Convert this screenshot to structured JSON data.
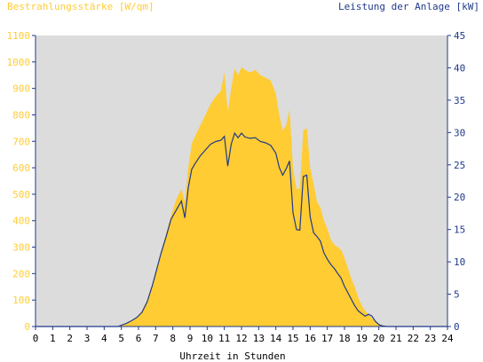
{
  "chart_data": {
    "type": "area",
    "title_left": "Bestrahlungsstärke [W/qm]",
    "title_right": "Leistung der Anlage [kW]",
    "xlabel": "Uhrzeit in Stunden",
    "xlim": [
      0,
      24
    ],
    "x_ticks": [
      "0",
      "1",
      "2",
      "3",
      "4",
      "5",
      "6",
      "7",
      "8",
      "9",
      "10",
      "11",
      "12",
      "13",
      "14",
      "15",
      "16",
      "17",
      "18",
      "19",
      "20",
      "21",
      "22",
      "23",
      "24"
    ],
    "y_left": {
      "lim": [
        0,
        1100
      ],
      "ticks": [
        "0",
        "100",
        "200",
        "300",
        "400",
        "500",
        "600",
        "700",
        "800",
        "900",
        "1000",
        "1100"
      ]
    },
    "y_right": {
      "lim": [
        0,
        45
      ],
      "ticks": [
        "0",
        "5",
        "10",
        "15",
        "20",
        "25",
        "30",
        "35",
        "40",
        "45"
      ]
    },
    "grid": false,
    "colors": {
      "irradiance": "#ffcc33",
      "power": "#1f3a8a",
      "plot_bg": "#dcdcdc",
      "axis": "#1f3a8a"
    },
    "series": [
      {
        "name": "Bestrahlungsstärke [W/qm]",
        "axis": "left",
        "kind": "area",
        "x": [
          0,
          4.8,
          5.0,
          5.3,
          5.6,
          5.9,
          6.2,
          6.5,
          6.8,
          7.0,
          7.3,
          7.6,
          7.9,
          8.2,
          8.5,
          8.7,
          8.9,
          9.1,
          9.3,
          9.6,
          9.9,
          10.2,
          10.5,
          10.8,
          11.0,
          11.2,
          11.4,
          11.6,
          11.8,
          12.0,
          12.2,
          12.5,
          12.8,
          13.1,
          13.4,
          13.7,
          14.0,
          14.2,
          14.4,
          14.6,
          14.8,
          15.0,
          15.2,
          15.4,
          15.6,
          15.8,
          16.0,
          16.2,
          16.4,
          16.6,
          16.8,
          17.0,
          17.2,
          17.4,
          17.6,
          17.8,
          18.0,
          18.2,
          18.4,
          18.6,
          18.8,
          19.0,
          19.2,
          19.4,
          19.6,
          19.8,
          20.0,
          20.2,
          20.5,
          24
        ],
        "values": [
          0,
          0,
          5,
          10,
          20,
          35,
          60,
          100,
          160,
          210,
          280,
          350,
          420,
          480,
          520,
          470,
          600,
          690,
          720,
          760,
          800,
          840,
          870,
          890,
          960,
          810,
          900,
          975,
          950,
          980,
          970,
          960,
          970,
          950,
          940,
          930,
          880,
          800,
          740,
          760,
          820,
          600,
          520,
          520,
          740,
          750,
          600,
          540,
          470,
          450,
          400,
          370,
          330,
          310,
          300,
          290,
          260,
          220,
          180,
          150,
          110,
          80,
          60,
          45,
          30,
          20,
          10,
          5,
          0,
          0
        ]
      },
      {
        "name": "Leistung der Anlage [kW]",
        "axis": "right",
        "kind": "line",
        "x": [
          0,
          4.8,
          5.0,
          5.3,
          5.6,
          5.9,
          6.2,
          6.5,
          6.8,
          7.0,
          7.3,
          7.6,
          7.9,
          8.2,
          8.5,
          8.7,
          8.9,
          9.1,
          9.3,
          9.6,
          9.9,
          10.2,
          10.5,
          10.8,
          11.0,
          11.2,
          11.4,
          11.6,
          11.8,
          12.0,
          12.2,
          12.5,
          12.8,
          13.1,
          13.4,
          13.7,
          14.0,
          14.2,
          14.4,
          14.6,
          14.8,
          15.0,
          15.2,
          15.4,
          15.6,
          15.8,
          16.0,
          16.2,
          16.4,
          16.6,
          16.8,
          17.0,
          17.2,
          17.4,
          17.6,
          17.8,
          18.0,
          18.2,
          18.4,
          18.6,
          18.8,
          19.0,
          19.2,
          19.4,
          19.6,
          19.8,
          20.0,
          20.2,
          20.5,
          24
        ],
        "values": [
          0,
          0,
          0.2,
          0.5,
          0.9,
          1.4,
          2.2,
          3.8,
          6.3,
          8.2,
          11.2,
          13.8,
          16.6,
          18.0,
          19.4,
          16.8,
          21.5,
          24.3,
          25.2,
          26.4,
          27.3,
          28.2,
          28.6,
          28.8,
          29.4,
          24.8,
          28.2,
          29.9,
          29.2,
          29.9,
          29.3,
          29.1,
          29.2,
          28.6,
          28.4,
          28.0,
          26.8,
          24.6,
          23.4,
          24.4,
          25.6,
          17.6,
          15.0,
          14.9,
          23.2,
          23.4,
          17.0,
          14.5,
          13.9,
          13.2,
          11.4,
          10.4,
          9.6,
          9.0,
          8.2,
          7.5,
          6.2,
          5.2,
          4.2,
          3.2,
          2.4,
          2.0,
          1.6,
          1.9,
          1.6,
          0.8,
          0.3,
          0.1,
          0,
          0
        ]
      }
    ]
  }
}
